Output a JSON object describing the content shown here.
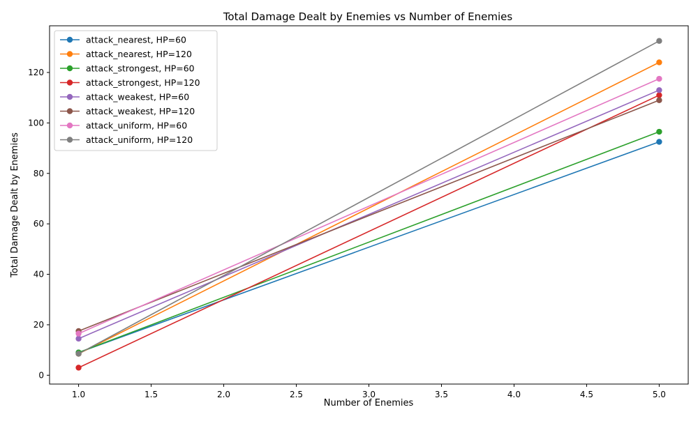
{
  "chart_data": {
    "type": "line",
    "title": "Total Damage Dealt by Enemies vs Number of Enemies",
    "xlabel": "Number of Enemies",
    "ylabel": "Total Damage Dealt by Enemies",
    "xlim": [
      0.8,
      5.2
    ],
    "ylim": [
      -3.5,
      138.5
    ],
    "xticks": [
      "1.0",
      "1.5",
      "2.0",
      "2.5",
      "3.0",
      "3.5",
      "4.0",
      "4.5",
      "5.0"
    ],
    "yticks": [
      "0",
      "20",
      "40",
      "60",
      "80",
      "100",
      "120"
    ],
    "grid": false,
    "legend_position": "upper-left",
    "x": [
      1,
      5
    ],
    "series": [
      {
        "name": "attack_nearest, HP=60",
        "color": "#1f77b4",
        "values": [
          9.0,
          92.5
        ]
      },
      {
        "name": "attack_nearest, HP=120",
        "color": "#ff7f0e",
        "values": [
          8.5,
          124.0
        ]
      },
      {
        "name": "attack_strongest, HP=60",
        "color": "#2ca02c",
        "values": [
          9.0,
          96.5
        ]
      },
      {
        "name": "attack_strongest, HP=120",
        "color": "#d62728",
        "values": [
          3.0,
          111.0
        ]
      },
      {
        "name": "attack_weakest, HP=60",
        "color": "#9467bd",
        "values": [
          14.5,
          113.0
        ]
      },
      {
        "name": "attack_weakest, HP=120",
        "color": "#8c564b",
        "values": [
          17.5,
          109.0
        ]
      },
      {
        "name": "attack_uniform, HP=60",
        "color": "#e377c2",
        "values": [
          16.5,
          117.5
        ]
      },
      {
        "name": "attack_uniform, HP=120",
        "color": "#7f7f7f",
        "values": [
          8.5,
          132.5
        ]
      }
    ]
  }
}
